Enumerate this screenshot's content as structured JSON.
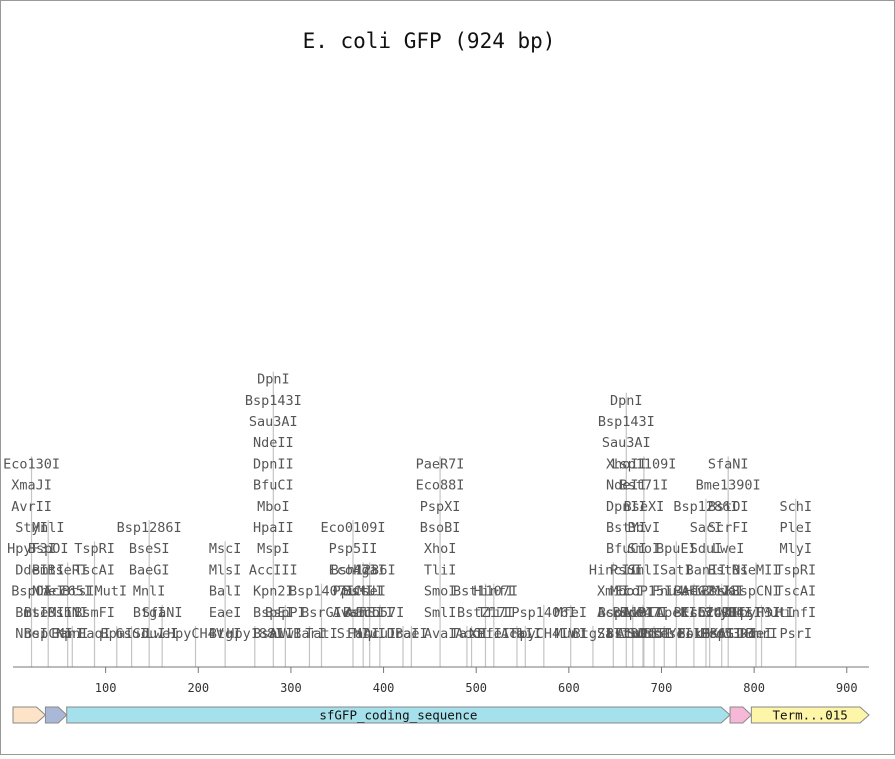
{
  "title": "E. coli GFP (924 bp)",
  "sequence_length": 924,
  "axis": {
    "ticks": [
      100,
      200,
      300,
      400,
      500,
      600,
      700,
      800,
      900
    ]
  },
  "features": [
    {
      "name": "",
      "start": 1,
      "end": 35,
      "color": "#fde3c8",
      "direction": "forward"
    },
    {
      "name": "",
      "start": 36,
      "end": 58,
      "color": "#aab8d8",
      "direction": "forward"
    },
    {
      "name": "sfGFP_coding_sequence",
      "start": 59,
      "end": 774,
      "color": "#a4e1ec",
      "direction": "forward"
    },
    {
      "name": "",
      "start": 775,
      "end": 797,
      "color": "#f7b7d6",
      "direction": "forward"
    },
    {
      "name": "Term...015",
      "start": 798,
      "end": 924,
      "color": "#fdf5a7",
      "direction": "forward"
    }
  ],
  "sites": [
    {
      "x": 20,
      "labels": [
        "NheI",
        "BmtI",
        "BspOI",
        "DdeI",
        "HpyF3I",
        "StyI",
        "AvrII",
        "XmaJI",
        "Eco130I"
      ]
    },
    {
      "x": 38,
      "labels": [
        "BspCNI",
        "BseMII",
        "NheI",
        "BmtI",
        "BspOI",
        "MnlI"
      ]
    },
    {
      "x": 59,
      "labels": [
        "BanI",
        "BshNI",
        "Acc65I",
        "BseRI"
      ]
    },
    {
      "x": 64,
      "labels": [
        "KpnI"
      ]
    },
    {
      "x": 88,
      "labels": [
        "FaqI",
        "BsmFI",
        "BtsIMutI",
        "TscAI",
        "TspRI"
      ]
    },
    {
      "x": 112,
      "labels": [
        "BpmI"
      ]
    },
    {
      "x": 128,
      "labels": [
        "GsuI"
      ]
    },
    {
      "x": 147,
      "labels": [
        "SduI",
        "BtgI",
        "MnlI",
        "BaeGI",
        "BseSI",
        "Bsp1286I"
      ]
    },
    {
      "x": 161,
      "labels": [
        "LweI",
        "SfaNI"
      ]
    },
    {
      "x": 197,
      "labels": [
        "HpyCH4V"
      ]
    },
    {
      "x": 229,
      "labels": [
        "BtgI",
        "EaeI",
        "BalI",
        "MlsI",
        "MscI"
      ]
    },
    {
      "x": 261,
      "labels": [
        "Hpy188I"
      ]
    },
    {
      "x": 281,
      "labels": [
        "BsaWI",
        "BspEI",
        "Kpn2I",
        "AccIII",
        "MspI",
        "HpaII",
        "MboI",
        "BfuCI",
        "DpnII",
        "NdeII",
        "Sau3AI",
        "Bsp143I",
        "DpnI"
      ]
    },
    {
      "x": 294,
      "labels": [
        "AlwI",
        "BspPI"
      ]
    },
    {
      "x": 320,
      "labels": [
        "BarI"
      ]
    },
    {
      "x": 333,
      "labels": [
        "TatI",
        "BsrGI",
        "Bsp1407I"
      ]
    },
    {
      "x": 367,
      "labels": [
        "SinI",
        "AvaII",
        "PpuMI",
        "Eco47I",
        "Psp5II",
        "Eco0109I"
      ]
    },
    {
      "x": 378,
      "labels": [
        "FaqI",
        "BsmFI",
        "BstUI",
        "Bsh1236I"
      ]
    },
    {
      "x": 385,
      "labels": [
        "MluI",
        "AflIII",
        "CseI",
        "HgaI"
      ]
    },
    {
      "x": 396,
      "labels": [
        "AcuI",
        "Eco57I"
      ]
    },
    {
      "x": 421,
      "labels": [
        "DraI"
      ]
    },
    {
      "x": 430,
      "labels": [
        "BaeI"
      ]
    },
    {
      "x": 461,
      "labels": [
        "AvaI",
        "SmlI",
        "SmoI",
        "TliI",
        "XhoI",
        "BsoBI",
        "PspXI",
        "Eco88I",
        "PaeR7I"
      ]
    },
    {
      "x": 490,
      "labels": [
        "TatI"
      ]
    },
    {
      "x": 495,
      "labels": [
        "AccI"
      ]
    },
    {
      "x": 510,
      "labels": [
        "XmiI",
        "BstZ17I",
        "Bst1107I"
      ]
    },
    {
      "x": 519,
      "labels": [
        "PfeI",
        "TfiI",
        "HinfI"
      ]
    },
    {
      "x": 544,
      "labels": [
        "AclI"
      ]
    },
    {
      "x": 553,
      "labels": [
        "TaiI"
      ]
    },
    {
      "x": 573,
      "labels": [
        "HpyCH4IV",
        "Psp1406I"
      ]
    },
    {
      "x": 602,
      "labels": [
        "MunI",
        "MfeI"
      ]
    },
    {
      "x": 626,
      "labels": [
        "BtgZI"
      ]
    },
    {
      "x": 648,
      "labels": [
        "SalI",
        "AccI",
        "XmiI",
        "HincII"
      ]
    },
    {
      "x": 662,
      "labels": [
        "BstBI",
        "Bsp119I",
        "MboI",
        "PsuI",
        "BfuCI",
        "BstYI",
        "DpnII",
        "NdeII",
        "XhoII",
        "Sau3AI",
        "Bsp143I",
        "DpnI"
      ]
    },
    {
      "x": 669,
      "labels": [
        "AlwI",
        "BspPI"
      ]
    },
    {
      "x": 680,
      "labels": [
        "SinI",
        "AvaII"
      ]
    },
    {
      "x": 681,
      "labels": [
        "EcoP15I",
        "Eco47I",
        "EcoP15I",
        "SmlI",
        "SmoI",
        "BbvI",
        "BseXI",
        "Bst71I",
        "Lsp1109I"
      ]
    },
    {
      "x": 692,
      "labels": [
        "OrdI"
      ]
    },
    {
      "x": 703,
      "labels": [
        "BseYI"
      ]
    },
    {
      "x": 716,
      "labels": [
        "TseI",
        "ApeKI",
        "Fnu4HI",
        "SatI",
        "BpuEI"
      ]
    },
    {
      "x": 735,
      "labels": [
        "FokI",
        "BtsCI",
        "BseGI"
      ]
    },
    {
      "x": 748,
      "labels": [
        "BsiHKAI",
        "Eco24I",
        "Alw21I",
        "BanII",
        "SduI",
        "SacI",
        "Bsp1286I"
      ]
    },
    {
      "x": 752,
      "labels": [
        "Ecl136II",
        "EcoICRI"
      ]
    },
    {
      "x": 765,
      "labels": [
        "PspGI",
        "EcoRII",
        "BssKI"
      ]
    },
    {
      "x": 772,
      "labels": [
        "Eco53kI",
        "StyD4I",
        "MvaI",
        "BstNI",
        "LweI",
        "ScrFI",
        "BstOI",
        "Bme1390I",
        "SfaNI"
      ]
    },
    {
      "x": 802,
      "labels": [
        "DdeI",
        "HpyF3I",
        "BspCNI",
        "BseMII"
      ]
    },
    {
      "x": 808,
      "labels": [
        "BmrI",
        "BtsIMutI"
      ]
    },
    {
      "x": 845,
      "labels": [
        "PsrI",
        "HinfI",
        "TscAI",
        "TspRI",
        "MlyI",
        "PleI",
        "SchI"
      ]
    }
  ]
}
